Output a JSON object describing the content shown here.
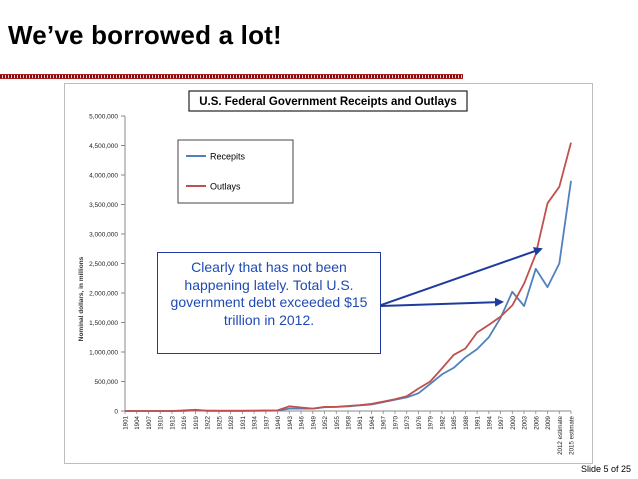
{
  "slide": {
    "title": "We’ve borrowed a lot!",
    "footer": "Slide 5 of 25",
    "callout": "Clearly that has not been happening lately.  Total U.S. government debt exceeded $15 trillion in 2012."
  },
  "chart_data": {
    "type": "line",
    "title": "U.S. Federal Government Receipts and Outlays",
    "ylabel": "Nominal dollars, in millions",
    "xlabel": "",
    "ylim": [
      0,
      5000000
    ],
    "yticks": [
      "0",
      "500,000",
      "1,000,000",
      "1,500,000",
      "2,000,000",
      "2,500,000",
      "3,000,000",
      "3,500,000",
      "4,000,000",
      "4,500,000",
      "5,000,000"
    ],
    "categories": [
      "1901",
      "1904",
      "1907",
      "1910",
      "1913",
      "1916",
      "1919",
      "1922",
      "1925",
      "1928",
      "1931",
      "1934",
      "1937",
      "1940",
      "1943",
      "1946",
      "1949",
      "1952",
      "1955",
      "1958",
      "1961",
      "1964",
      "1967",
      "1970",
      "1973",
      "1976",
      "1979",
      "1982",
      "1985",
      "1988",
      "1991",
      "1994",
      "1997",
      "2000",
      "2003",
      "2006",
      "2009",
      "2012 estimate",
      "2015 estimate"
    ],
    "legend_position": "top-left",
    "grid": false,
    "series": [
      {
        "name": "Recepits",
        "color": "#4f81bd",
        "values": [
          0,
          0,
          0,
          0,
          0,
          0,
          10000,
          5000,
          4000,
          4000,
          3000,
          3000,
          5000,
          6000,
          40000,
          40000,
          40000,
          65000,
          70000,
          80000,
          95000,
          110000,
          150000,
          190000,
          230000,
          300000,
          460000,
          620000,
          730000,
          910000,
          1050000,
          1250000,
          1580000,
          2020000,
          1780000,
          2410000,
          2100000,
          2500000,
          3900000
        ]
      },
      {
        "name": "Outlays",
        "color": "#c0504d",
        "values": [
          0,
          0,
          0,
          0,
          0,
          10000,
          20000,
          3000,
          3000,
          3000,
          4000,
          6000,
          8000,
          10000,
          80000,
          60000,
          40000,
          70000,
          70000,
          85000,
          100000,
          120000,
          160000,
          200000,
          250000,
          380000,
          500000,
          720000,
          950000,
          1060000,
          1330000,
          1460000,
          1600000,
          1790000,
          2160000,
          2660000,
          3520000,
          3800000,
          4550000
        ]
      }
    ]
  }
}
